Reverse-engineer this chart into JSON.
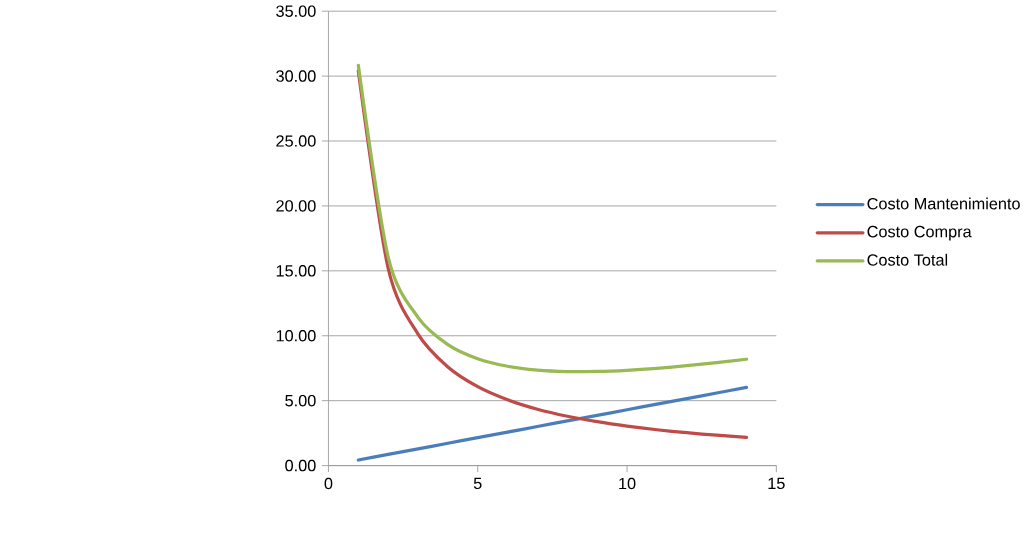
{
  "chart_data": {
    "type": "line",
    "x": [
      1,
      2,
      3,
      4,
      5,
      6,
      7,
      8,
      9,
      10,
      11,
      12,
      13,
      14
    ],
    "series": [
      {
        "name": "Costo Mantenimiento",
        "color": "#4a7ebb",
        "values": [
          0.43,
          0.86,
          1.29,
          1.72,
          2.15,
          2.58,
          3.01,
          3.44,
          3.87,
          4.3,
          4.73,
          5.16,
          5.59,
          6.02
        ]
      },
      {
        "name": "Costo Compra",
        "color": "#be4b48",
        "values": [
          30.4,
          15.2,
          10.13,
          7.6,
          6.08,
          5.07,
          4.34,
          3.8,
          3.38,
          3.04,
          2.76,
          2.53,
          2.34,
          2.17
        ]
      },
      {
        "name": "Costo Total",
        "color": "#98b954",
        "values": [
          30.83,
          16.06,
          11.42,
          9.32,
          8.23,
          7.65,
          7.35,
          7.24,
          7.25,
          7.34,
          7.49,
          7.69,
          7.93,
          8.19
        ]
      }
    ],
    "xlim": [
      0,
      15
    ],
    "xticks": [
      0,
      5,
      10,
      15
    ],
    "ylim": [
      0,
      35
    ],
    "yticks": [
      {
        "value": 0,
        "label": "0.00"
      },
      {
        "value": 5,
        "label": "5.00"
      },
      {
        "value": 10,
        "label": "10.00"
      },
      {
        "value": 15,
        "label": "15.00"
      },
      {
        "value": 20,
        "label": "20.00"
      },
      {
        "value": 25,
        "label": "25.00"
      },
      {
        "value": 30,
        "label": "30.00"
      },
      {
        "value": 35,
        "label": "35.00"
      }
    ],
    "grid": "y",
    "legend": "right",
    "marker": "none",
    "line_style": "solid"
  }
}
